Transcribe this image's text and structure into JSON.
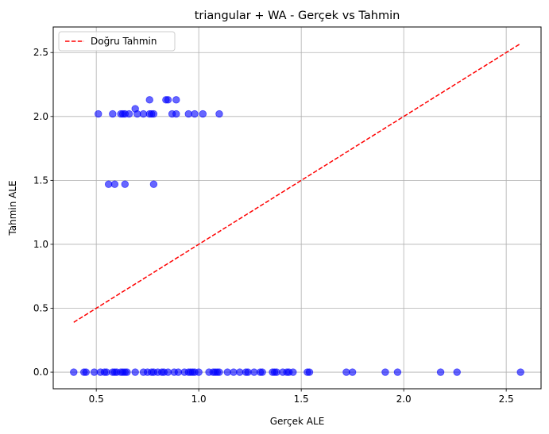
{
  "chart_data": {
    "type": "scatter",
    "title": "triangular + WA - Gerçek vs Tahmin",
    "xlabel": "Gerçek ALE",
    "ylabel": "Tahmin ALE",
    "xlim": [
      0.29,
      2.67
    ],
    "ylim": [
      -0.13,
      2.7
    ],
    "x_ticks": [
      0.5,
      1.0,
      1.5,
      2.0,
      2.5
    ],
    "x_tick_labels": [
      "0.5",
      "1.0",
      "1.5",
      "2.0",
      "2.5"
    ],
    "y_ticks": [
      0.0,
      0.5,
      1.0,
      1.5,
      2.0,
      2.5
    ],
    "y_tick_labels": [
      "0.0",
      "0.5",
      "1.0",
      "1.5",
      "2.0",
      "2.5"
    ],
    "grid": true,
    "legend_position": "top-left",
    "series": [
      {
        "kind": "scatter",
        "color": "#0000ff",
        "alpha": 0.6,
        "points": [
          [
            0.51,
            2.02
          ],
          [
            0.58,
            2.02
          ],
          [
            0.62,
            2.02
          ],
          [
            0.63,
            2.02
          ],
          [
            0.64,
            2.02
          ],
          [
            0.66,
            2.02
          ],
          [
            0.69,
            2.06
          ],
          [
            0.7,
            2.02
          ],
          [
            0.73,
            2.02
          ],
          [
            0.76,
            2.02
          ],
          [
            0.76,
            2.13
          ],
          [
            0.77,
            2.02
          ],
          [
            0.78,
            2.02
          ],
          [
            0.84,
            2.13
          ],
          [
            0.85,
            2.13
          ],
          [
            0.87,
            2.02
          ],
          [
            0.89,
            2.02
          ],
          [
            0.89,
            2.13
          ],
          [
            0.95,
            2.02
          ],
          [
            0.98,
            2.02
          ],
          [
            1.02,
            2.02
          ],
          [
            1.1,
            2.02
          ],
          [
            0.56,
            1.47
          ],
          [
            0.59,
            1.47
          ],
          [
            0.64,
            1.47
          ],
          [
            0.78,
            1.47
          ],
          [
            0.39,
            0.0
          ],
          [
            0.44,
            0.0
          ],
          [
            0.45,
            0.0
          ],
          [
            0.49,
            0.0
          ],
          [
            0.52,
            0.0
          ],
          [
            0.54,
            0.0
          ],
          [
            0.55,
            0.0
          ],
          [
            0.58,
            0.0
          ],
          [
            0.59,
            0.0
          ],
          [
            0.6,
            0.0
          ],
          [
            0.62,
            0.0
          ],
          [
            0.63,
            0.0
          ],
          [
            0.64,
            0.0
          ],
          [
            0.65,
            0.0
          ],
          [
            0.69,
            0.0
          ],
          [
            0.73,
            0.0
          ],
          [
            0.75,
            0.0
          ],
          [
            0.77,
            0.0
          ],
          [
            0.78,
            0.0
          ],
          [
            0.8,
            0.0
          ],
          [
            0.82,
            0.0
          ],
          [
            0.83,
            0.0
          ],
          [
            0.85,
            0.0
          ],
          [
            0.88,
            0.0
          ],
          [
            0.9,
            0.0
          ],
          [
            0.93,
            0.0
          ],
          [
            0.95,
            0.0
          ],
          [
            0.96,
            0.0
          ],
          [
            0.97,
            0.0
          ],
          [
            0.98,
            0.0
          ],
          [
            1.0,
            0.0
          ],
          [
            1.05,
            0.0
          ],
          [
            1.07,
            0.0
          ],
          [
            1.08,
            0.0
          ],
          [
            1.09,
            0.0
          ],
          [
            1.1,
            0.0
          ],
          [
            1.14,
            0.0
          ],
          [
            1.17,
            0.0
          ],
          [
            1.2,
            0.0
          ],
          [
            1.23,
            0.0
          ],
          [
            1.24,
            0.0
          ],
          [
            1.27,
            0.0
          ],
          [
            1.3,
            0.0
          ],
          [
            1.31,
            0.0
          ],
          [
            1.36,
            0.0
          ],
          [
            1.37,
            0.0
          ],
          [
            1.38,
            0.0
          ],
          [
            1.41,
            0.0
          ],
          [
            1.43,
            0.0
          ],
          [
            1.44,
            0.0
          ],
          [
            1.46,
            0.0
          ],
          [
            1.53,
            0.0
          ],
          [
            1.54,
            0.0
          ],
          [
            1.72,
            0.0
          ],
          [
            1.75,
            0.0
          ],
          [
            1.91,
            0.0
          ],
          [
            1.97,
            0.0
          ],
          [
            2.18,
            0.0
          ],
          [
            2.26,
            0.0
          ],
          [
            2.57,
            0.0
          ]
        ]
      },
      {
        "name": "Doğru Tahmin",
        "kind": "line",
        "style": "dashed",
        "color": "#ff0000",
        "x": [
          0.39,
          2.57
        ],
        "y": [
          0.39,
          2.57
        ]
      }
    ]
  }
}
